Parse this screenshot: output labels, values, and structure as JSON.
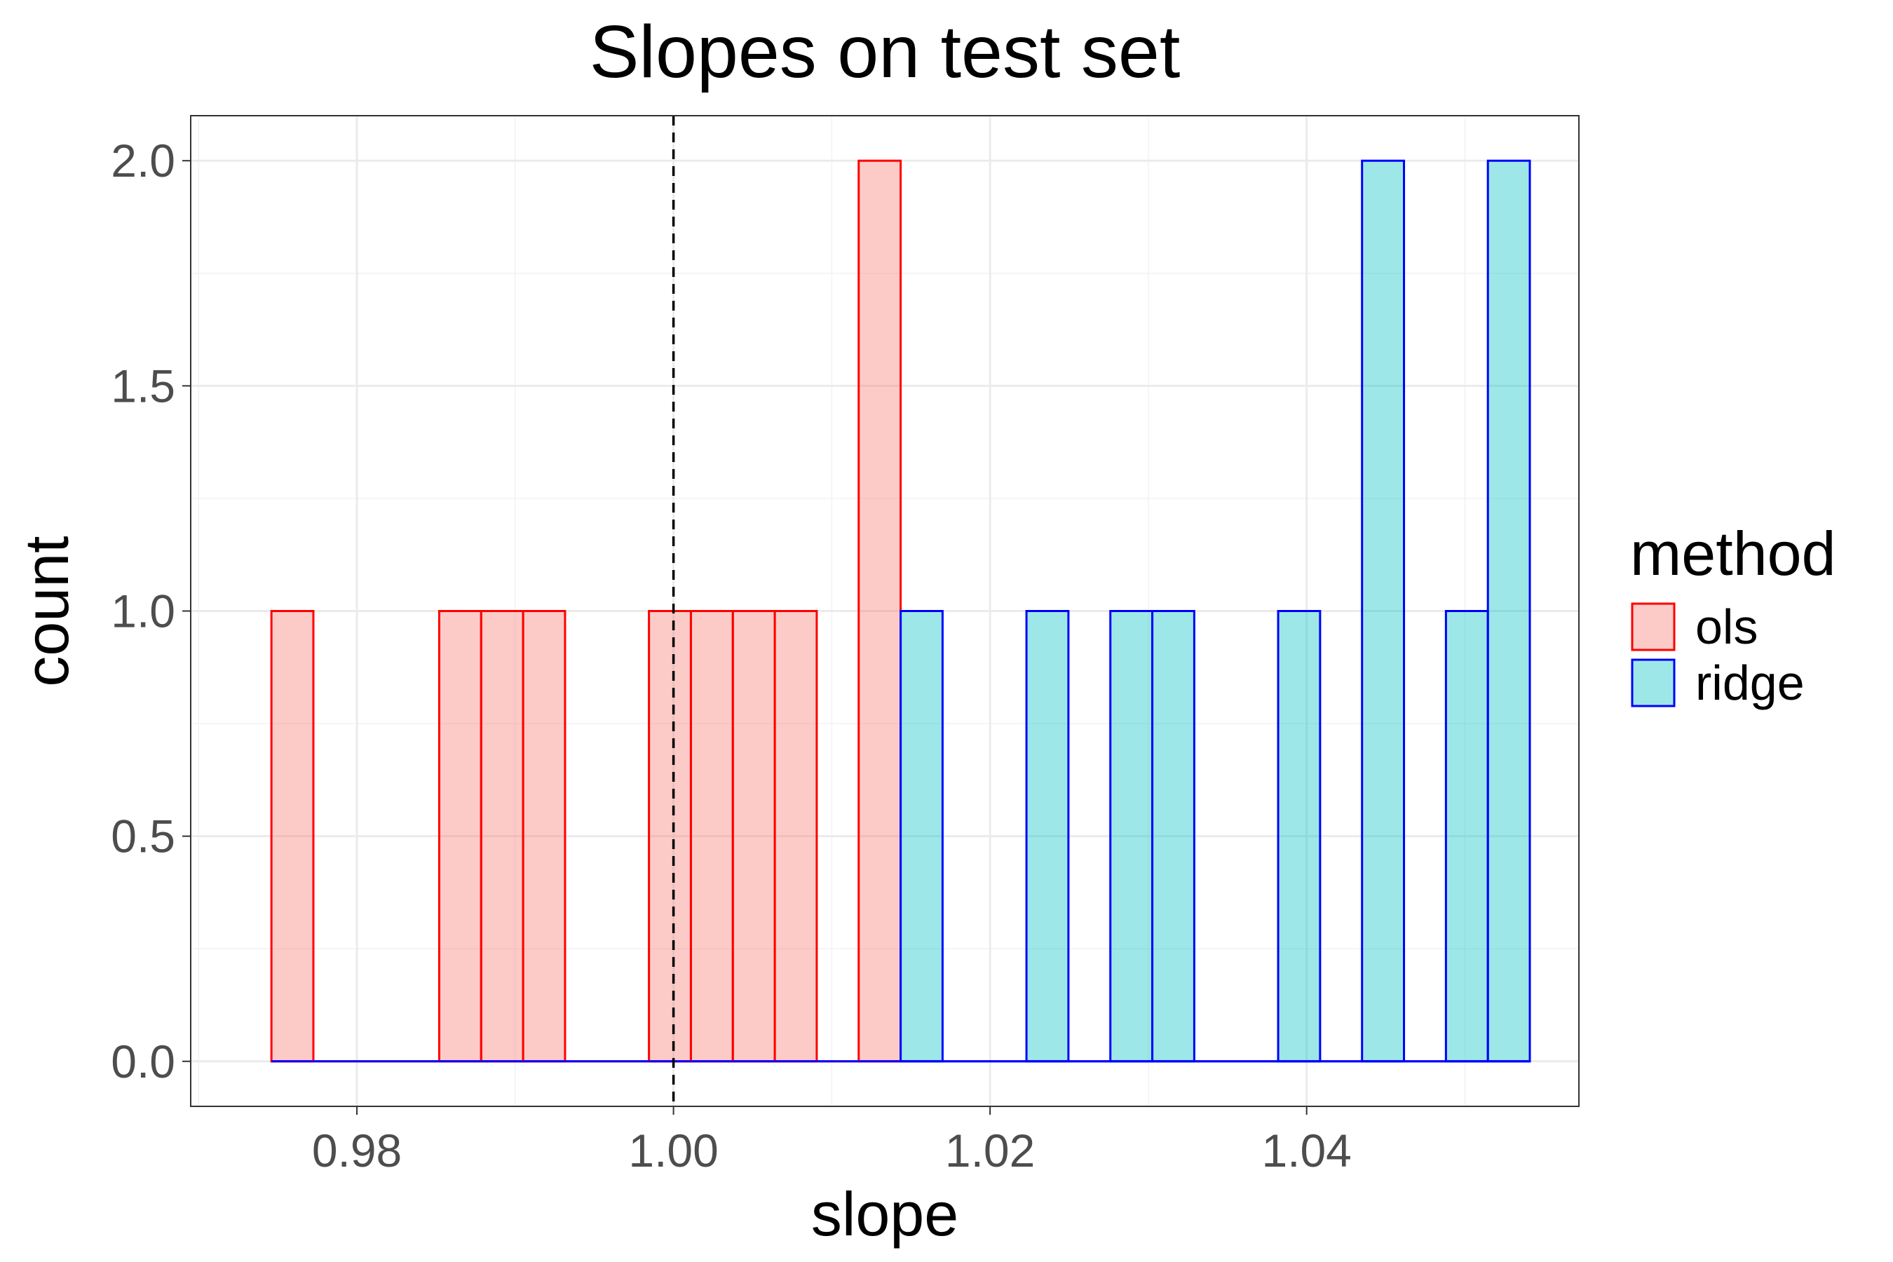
{
  "chart_data": {
    "type": "bar",
    "title": "Slopes on test set",
    "xlabel": "slope",
    "ylabel": "count",
    "xlim": [
      0.9695,
      1.0572
    ],
    "ylim": [
      -0.1,
      2.1
    ],
    "x_ticks": [
      "0.98",
      "1.00",
      "1.02",
      "1.04"
    ],
    "x_tick_values": [
      0.98,
      1.0,
      1.02,
      1.04
    ],
    "y_ticks": [
      "0.0",
      "0.5",
      "1.0",
      "1.5",
      "2.0"
    ],
    "y_tick_values": [
      0,
      0.5,
      1.0,
      1.5,
      2.0
    ],
    "grid": true,
    "legend_position": "right",
    "legend_title": "method",
    "reference_line": {
      "x": 1.0,
      "style": "dashed",
      "color": "#000000"
    },
    "bins": {
      "start": 0.9746,
      "width": 0.00265,
      "count": 30
    },
    "series": [
      {
        "name": "ols",
        "fill": "#F8766D",
        "stroke": "#FF0000",
        "values": [
          1,
          0,
          0,
          0,
          1,
          1,
          1,
          0,
          0,
          1,
          1,
          1,
          1,
          0,
          2,
          0,
          0,
          0,
          0,
          0,
          0,
          0,
          0,
          0,
          0,
          0,
          0,
          0,
          0,
          0
        ]
      },
      {
        "name": "ridge",
        "fill": "#00BFC4",
        "stroke": "#0000FF",
        "values": [
          0,
          0,
          0,
          0,
          0,
          0,
          0,
          0,
          0,
          0,
          0,
          0,
          0,
          0,
          0,
          1,
          0,
          0,
          1,
          0,
          1,
          1,
          0,
          0,
          1,
          0,
          2,
          0,
          1,
          2
        ]
      }
    ]
  }
}
